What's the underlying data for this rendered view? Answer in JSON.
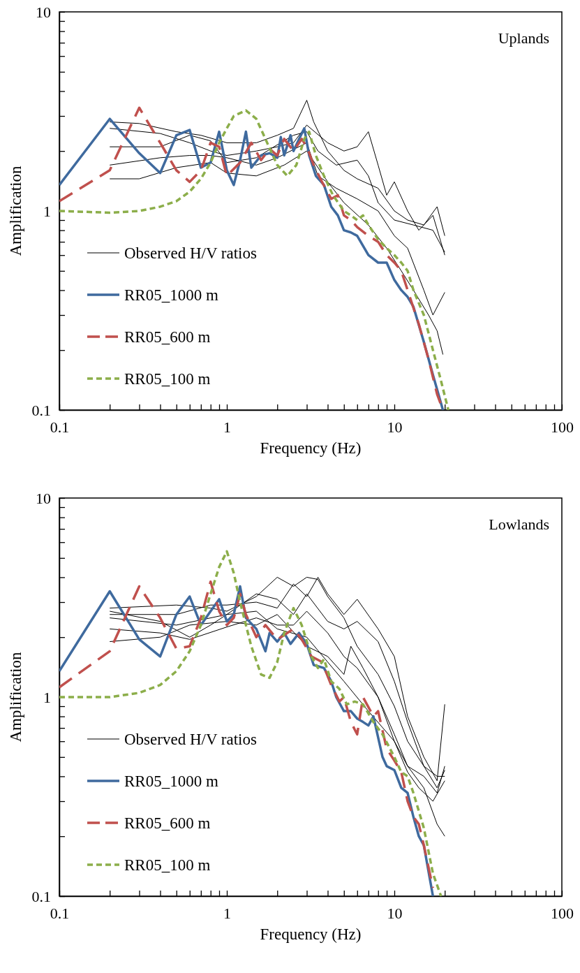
{
  "chart_data": [
    {
      "type": "line",
      "xlabel": "Frequency (Hz)",
      "ylabel": "Amplification",
      "annotations": [
        "Uplands"
      ],
      "log": "xy",
      "grid": false,
      "legend": "bottom left",
      "xlim": [
        0.1,
        100
      ],
      "ylim": [
        0.1,
        10
      ],
      "xticks": [
        0.1,
        {
          "value": 0.2,
          "label": null
        },
        {
          "value": 0.3,
          "label": null
        },
        {
          "value": 0.4,
          "label": null
        },
        {
          "value": 0.5,
          "label": null
        },
        {
          "value": 0.6,
          "label": null
        },
        {
          "value": 0.7,
          "label": null
        },
        {
          "value": 0.8,
          "label": null
        },
        {
          "value": 0.9,
          "label": null
        },
        1,
        {
          "value": 2,
          "label": null
        },
        {
          "value": 3,
          "label": null
        },
        {
          "value": 4,
          "label": null
        },
        {
          "value": 5,
          "label": null
        },
        {
          "value": 6,
          "label": null
        },
        {
          "value": 7,
          "label": null
        },
        {
          "value": 8,
          "label": null
        },
        {
          "value": 9,
          "label": null
        },
        10,
        {
          "value": 20,
          "label": null
        },
        {
          "value": 30,
          "label": null
        },
        {
          "value": 40,
          "label": null
        },
        {
          "value": 50,
          "label": null
        },
        {
          "value": 60,
          "label": null
        },
        {
          "value": 70,
          "label": null
        },
        {
          "value": 80,
          "label": null
        },
        {
          "value": 90,
          "label": null
        },
        100
      ],
      "yticks": [
        0.1,
        {
          "value": 0.2,
          "label": null
        },
        {
          "value": 0.3,
          "label": null
        },
        {
          "value": 0.4,
          "label": null
        },
        {
          "value": 0.5,
          "label": null
        },
        {
          "value": 0.6,
          "label": null
        },
        {
          "value": 0.7,
          "label": null
        },
        {
          "value": 0.8,
          "label": null
        },
        {
          "value": 0.9,
          "label": null
        },
        1,
        {
          "value": 2,
          "label": null
        },
        {
          "value": 3,
          "label": null
        },
        {
          "value": 4,
          "label": null
        },
        {
          "value": 5,
          "label": null
        },
        {
          "value": 6,
          "label": null
        },
        {
          "value": 7,
          "label": null
        },
        {
          "value": 8,
          "label": null
        },
        {
          "value": 9,
          "label": null
        },
        10
      ],
      "series": [
        {
          "name": "Observed H/V ratios",
          "color": "#000000",
          "line_style": "solid",
          "x": [
            0.2,
            0.3,
            0.5,
            0.7,
            1,
            1.5,
            2,
            2.5,
            3,
            3.3,
            4,
            5,
            6,
            8,
            10,
            12,
            15,
            18,
            20
          ],
          "values": [
            2.8,
            2.75,
            2.5,
            2.4,
            2.2,
            2.2,
            2.4,
            2.6,
            3.6,
            2.8,
            2.0,
            1.6,
            1.45,
            1.3,
            1.0,
            0.9,
            0.85,
            1.05,
            0.75
          ]
        },
        {
          "color": "#000000",
          "line_style": "solid",
          "x": [
            0.2,
            0.4,
            0.6,
            0.8,
            1,
            1.5,
            2,
            2.5,
            3,
            4,
            5,
            6,
            7,
            8,
            9,
            10,
            12,
            14,
            17,
            20
          ],
          "values": [
            2.6,
            2.45,
            2.2,
            2.0,
            1.9,
            2.0,
            2.1,
            2.2,
            2.7,
            2.2,
            2.0,
            2.1,
            2.5,
            1.7,
            1.2,
            1.4,
            1.0,
            0.8,
            0.95,
            0.6
          ]
        },
        {
          "color": "#000000",
          "line_style": "solid",
          "x": [
            0.2,
            0.4,
            0.6,
            0.8,
            1,
            1.5,
            2,
            2.5,
            3,
            3.5,
            4.5,
            6,
            7,
            8,
            10,
            13,
            17,
            20
          ],
          "values": [
            2.1,
            2.1,
            2.4,
            2.25,
            1.75,
            1.85,
            2.15,
            2.4,
            2.5,
            2.0,
            1.7,
            1.8,
            1.5,
            1.1,
            0.9,
            0.85,
            0.8,
            0.62
          ]
        },
        {
          "color": "#000000",
          "line_style": "solid",
          "x": [
            0.2,
            0.4,
            0.6,
            0.8,
            1,
            1.5,
            2,
            3,
            3.5,
            4.5,
            6,
            8,
            10,
            12,
            15,
            17,
            20
          ],
          "values": [
            1.7,
            1.85,
            1.9,
            1.9,
            1.85,
            1.7,
            1.85,
            2.2,
            1.5,
            1.3,
            1.15,
            1.0,
            0.75,
            0.65,
            0.4,
            0.3,
            0.39
          ]
        },
        {
          "color": "#000000",
          "line_style": "solid",
          "x": [
            0.2,
            0.3,
            0.5,
            0.8,
            1,
            1.5,
            2.2,
            3,
            4,
            5,
            7,
            9,
            11,
            13,
            16,
            18,
            19.5
          ],
          "values": [
            1.45,
            1.45,
            1.65,
            1.75,
            1.55,
            1.5,
            1.7,
            2.0,
            1.4,
            1.1,
            0.85,
            0.65,
            0.5,
            0.4,
            0.3,
            0.25,
            0.19
          ]
        },
        {
          "name": "RR05_1000 m",
          "color": "#3f6a9e",
          "line_style": "solid",
          "x": [
            0.1,
            0.2,
            0.3,
            0.4,
            0.5,
            0.6,
            0.7,
            0.8,
            0.9,
            1.0,
            1.1,
            1.2,
            1.3,
            1.4,
            1.6,
            1.8,
            2.0,
            2.1,
            2.2,
            2.4,
            2.5,
            2.7,
            2.9,
            3.1,
            3.4,
            3.8,
            4.2,
            4.6,
            5.0,
            5.5,
            6.0,
            7.0,
            8.0,
            9.0,
            10,
            11,
            12,
            13,
            15,
            17,
            19.5
          ],
          "values": [
            1.35,
            2.9,
            1.95,
            1.55,
            2.4,
            2.55,
            1.65,
            1.75,
            2.5,
            1.6,
            1.35,
            1.8,
            2.5,
            1.65,
            1.9,
            1.95,
            1.85,
            2.35,
            1.9,
            2.4,
            2.0,
            2.3,
            2.6,
            1.9,
            1.5,
            1.35,
            1.05,
            0.95,
            0.8,
            0.78,
            0.75,
            0.6,
            0.55,
            0.55,
            0.45,
            0.4,
            0.37,
            0.33,
            0.22,
            0.15,
            0.1
          ]
        },
        {
          "name": "RR05_600 m",
          "color": "#c0504d",
          "line_style": "dashed",
          "x": [
            0.1,
            0.2,
            0.3,
            0.4,
            0.5,
            0.6,
            0.7,
            0.8,
            0.9,
            1.0,
            1.2,
            1.4,
            1.6,
            1.8,
            2.0,
            2.2,
            2.5,
            2.8,
            3.0,
            3.3,
            3.7,
            4.2,
            4.6,
            5,
            5.5,
            6,
            7,
            8,
            9,
            10,
            11,
            12,
            14,
            16,
            18,
            19.5
          ],
          "values": [
            1.12,
            1.6,
            3.3,
            2.2,
            1.6,
            1.4,
            1.6,
            2.2,
            2.1,
            1.5,
            1.75,
            2.2,
            1.8,
            2.05,
            1.9,
            2.3,
            2.0,
            2.3,
            2.1,
            1.7,
            1.4,
            1.15,
            1.2,
            0.95,
            0.9,
            0.83,
            0.75,
            0.7,
            0.6,
            0.55,
            0.5,
            0.4,
            0.27,
            0.18,
            0.12,
            0.1
          ]
        },
        {
          "name": "RR05_100 m",
          "color": "#8cae4a",
          "line_style": "dotted",
          "x": [
            0.1,
            0.2,
            0.3,
            0.4,
            0.5,
            0.6,
            0.7,
            0.8,
            0.9,
            1.0,
            1.1,
            1.3,
            1.5,
            1.7,
            2.0,
            2.3,
            2.6,
            2.9,
            3.1,
            3.4,
            3.8,
            4.3,
            5,
            5.5,
            6,
            6.5,
            7,
            8,
            9,
            10,
            11,
            12,
            13,
            15,
            17,
            19,
            21
          ],
          "values": [
            1.0,
            0.98,
            1.0,
            1.05,
            1.12,
            1.25,
            1.45,
            1.75,
            2.2,
            2.6,
            3.0,
            3.2,
            2.9,
            2.3,
            1.7,
            1.5,
            1.7,
            2.3,
            2.5,
            1.9,
            1.5,
            1.2,
            1.0,
            0.95,
            0.9,
            0.95,
            0.85,
            0.72,
            0.65,
            0.6,
            0.55,
            0.5,
            0.4,
            0.3,
            0.2,
            0.14,
            0.1
          ]
        }
      ]
    },
    {
      "type": "line",
      "xlabel": "Frequency (Hz)",
      "ylabel": "Amplification",
      "annotations": [
        "Lowlands"
      ],
      "log": "xy",
      "grid": false,
      "legend": "bottom left",
      "xlim": [
        0.1,
        100
      ],
      "ylim": [
        0.1,
        10
      ],
      "xticks": [
        0.1,
        {
          "value": 0.2,
          "label": null
        },
        {
          "value": 0.3,
          "label": null
        },
        {
          "value": 0.4,
          "label": null
        },
        {
          "value": 0.5,
          "label": null
        },
        {
          "value": 0.6,
          "label": null
        },
        {
          "value": 0.7,
          "label": null
        },
        {
          "value": 0.8,
          "label": null
        },
        {
          "value": 0.9,
          "label": null
        },
        1,
        {
          "value": 2,
          "label": null
        },
        {
          "value": 3,
          "label": null
        },
        {
          "value": 4,
          "label": null
        },
        {
          "value": 5,
          "label": null
        },
        {
          "value": 6,
          "label": null
        },
        {
          "value": 7,
          "label": null
        },
        {
          "value": 8,
          "label": null
        },
        {
          "value": 9,
          "label": null
        },
        10,
        {
          "value": 20,
          "label": null
        },
        {
          "value": 30,
          "label": null
        },
        {
          "value": 40,
          "label": null
        },
        {
          "value": 50,
          "label": null
        },
        {
          "value": 60,
          "label": null
        },
        {
          "value": 70,
          "label": null
        },
        {
          "value": 80,
          "label": null
        },
        {
          "value": 90,
          "label": null
        },
        100
      ],
      "yticks": [
        0.1,
        {
          "value": 0.2,
          "label": null
        },
        {
          "value": 0.3,
          "label": null
        },
        {
          "value": 0.4,
          "label": null
        },
        {
          "value": 0.5,
          "label": null
        },
        {
          "value": 0.6,
          "label": null
        },
        {
          "value": 0.7,
          "label": null
        },
        {
          "value": 0.8,
          "label": null
        },
        {
          "value": 0.9,
          "label": null
        },
        1,
        {
          "value": 2,
          "label": null
        },
        {
          "value": 3,
          "label": null
        },
        {
          "value": 4,
          "label": null
        },
        {
          "value": 5,
          "label": null
        },
        {
          "value": 6,
          "label": null
        },
        {
          "value": 7,
          "label": null
        },
        {
          "value": 8,
          "label": null
        },
        {
          "value": 9,
          "label": null
        },
        10
      ],
      "series": [
        {
          "name": "Observed H/V ratios",
          "color": "#000000",
          "line_style": "solid",
          "x": [
            0.2,
            0.5,
            0.8,
            1,
            1.5,
            2,
            2.5,
            3,
            3.5,
            4,
            5,
            6,
            8,
            10,
            12,
            15,
            18,
            20
          ],
          "values": [
            2.8,
            2.9,
            2.8,
            2.7,
            3.2,
            4.0,
            3.6,
            4.0,
            3.9,
            3.2,
            2.5,
            1.8,
            1.3,
            0.9,
            0.6,
            0.45,
            0.35,
            0.43
          ]
        },
        {
          "color": "#000000",
          "line_style": "solid",
          "x": [
            0.2,
            0.5,
            0.8,
            1,
            1.5,
            2,
            2.5,
            3,
            3.5,
            4,
            5,
            6,
            8,
            10,
            12,
            15,
            18,
            20
          ],
          "values": [
            2.6,
            2.6,
            2.9,
            2.9,
            3.0,
            2.8,
            3.7,
            3.2,
            4.0,
            3.3,
            2.6,
            3.1,
            2.2,
            1.6,
            0.8,
            0.5,
            0.38,
            0.92
          ]
        },
        {
          "color": "#000000",
          "line_style": "solid",
          "x": [
            0.2,
            0.5,
            1,
            1.5,
            2,
            2.5,
            3,
            4,
            5,
            6,
            8,
            10,
            12,
            15,
            18,
            20
          ],
          "values": [
            2.5,
            2.3,
            2.6,
            3.3,
            3.1,
            2.6,
            3.3,
            2.4,
            2.2,
            2.4,
            1.9,
            1.2,
            0.75,
            0.45,
            0.4,
            0.4
          ]
        },
        {
          "color": "#000000",
          "line_style": "solid",
          "x": [
            0.2,
            0.4,
            0.6,
            1,
            1.5,
            2,
            2.5,
            3,
            4,
            5,
            6,
            8,
            10,
            12,
            15,
            18,
            20
          ],
          "values": [
            2.2,
            2.1,
            1.95,
            2.25,
            2.5,
            2.3,
            2.3,
            2.7,
            2.1,
            1.6,
            1.4,
            1.0,
            0.65,
            0.45,
            0.4,
            0.33,
            0.45
          ]
        },
        {
          "color": "#000000",
          "line_style": "solid",
          "x": [
            0.2,
            0.4,
            0.6,
            1,
            1.5,
            2,
            3,
            4,
            5,
            5.5,
            6.5,
            8,
            10,
            12,
            14,
            17,
            20
          ],
          "values": [
            1.9,
            2.0,
            2.3,
            2.4,
            2.3,
            2.6,
            1.8,
            1.6,
            1.3,
            1.8,
            1.4,
            1.0,
            0.6,
            0.42,
            0.35,
            0.3,
            0.38
          ]
        },
        {
          "color": "#000000",
          "line_style": "solid",
          "x": [
            0.2,
            0.4,
            0.6,
            0.8,
            1,
            1.5,
            2,
            3,
            4,
            5,
            7,
            10,
            12,
            15,
            18,
            20
          ],
          "values": [
            2.7,
            2.4,
            2.0,
            2.3,
            2.6,
            2.7,
            2.2,
            2.0,
            1.5,
            1.2,
            0.85,
            0.6,
            0.45,
            0.35,
            0.23,
            0.2
          ]
        },
        {
          "name": "RR05_1000 m",
          "color": "#3f6a9e",
          "line_style": "solid",
          "x": [
            0.1,
            0.2,
            0.3,
            0.4,
            0.5,
            0.6,
            0.7,
            0.8,
            0.9,
            1.0,
            1.1,
            1.2,
            1.3,
            1.5,
            1.7,
            1.8,
            2.0,
            2.2,
            2.4,
            2.7,
            3.0,
            3.3,
            3.8,
            4.2,
            4.5,
            5,
            5.5,
            6,
            6.5,
            7,
            7.5,
            8.5,
            9,
            10,
            11,
            12,
            13,
            14,
            15,
            17
          ],
          "values": [
            1.35,
            3.4,
            1.95,
            1.6,
            2.6,
            3.2,
            2.3,
            2.7,
            3.1,
            2.4,
            2.6,
            3.6,
            2.5,
            2.2,
            1.7,
            2.1,
            1.9,
            2.1,
            1.85,
            2.1,
            1.85,
            1.45,
            1.4,
            1.2,
            1.0,
            0.85,
            0.85,
            0.78,
            0.75,
            0.72,
            0.8,
            0.5,
            0.45,
            0.43,
            0.35,
            0.33,
            0.25,
            0.2,
            0.18,
            0.1
          ]
        },
        {
          "name": "RR05_600 m",
          "color": "#c0504d",
          "line_style": "dashed",
          "x": [
            0.1,
            0.2,
            0.3,
            0.4,
            0.5,
            0.6,
            0.7,
            0.8,
            0.9,
            1.0,
            1.1,
            1.2,
            1.3,
            1.5,
            1.7,
            2.0,
            2.2,
            2.5,
            2.8,
            3.2,
            3.7,
            4.2,
            4.7,
            5,
            5.5,
            6,
            6.5,
            7.5,
            8,
            9,
            10,
            11,
            12,
            13,
            14,
            15,
            17
          ],
          "values": [
            1.12,
            1.7,
            3.6,
            2.5,
            1.75,
            1.8,
            2.5,
            3.8,
            2.7,
            2.3,
            2.5,
            3.3,
            2.6,
            2.0,
            2.3,
            1.95,
            2.05,
            2.2,
            1.95,
            1.6,
            1.5,
            1.15,
            0.95,
            1.0,
            0.75,
            0.65,
            1.0,
            0.8,
            0.85,
            0.55,
            0.48,
            0.42,
            0.3,
            0.25,
            0.23,
            0.18,
            0.11
          ]
        },
        {
          "name": "RR05_100 m",
          "color": "#8cae4a",
          "line_style": "dotted",
          "x": [
            0.1,
            0.2,
            0.3,
            0.4,
            0.5,
            0.6,
            0.7,
            0.8,
            0.9,
            1.0,
            1.1,
            1.2,
            1.4,
            1.6,
            1.8,
            2.0,
            2.2,
            2.5,
            2.8,
            3.2,
            3.5,
            3.8,
            4.2,
            4.7,
            5.2,
            5.8,
            6.5,
            7.5,
            8.5,
            10,
            11,
            12,
            13,
            15,
            17,
            19
          ],
          "values": [
            1.0,
            1.0,
            1.05,
            1.15,
            1.35,
            1.7,
            2.3,
            3.3,
            4.5,
            5.4,
            4.2,
            3.0,
            1.8,
            1.3,
            1.25,
            1.5,
            2.1,
            2.8,
            2.3,
            1.6,
            1.4,
            1.55,
            1.2,
            1.1,
            0.92,
            0.95,
            0.92,
            0.75,
            0.65,
            0.5,
            0.42,
            0.4,
            0.33,
            0.22,
            0.13,
            0.1
          ]
        }
      ]
    }
  ]
}
